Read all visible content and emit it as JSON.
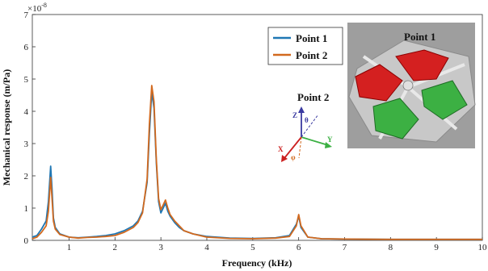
{
  "chart_data": {
    "type": "line",
    "xlabel": "Frequency (kHz)",
    "ylabel": "Mechanical response (m/Pa)",
    "y_multiplier": "×10",
    "y_exponent": "-8",
    "xlim": [
      0.2,
      10
    ],
    "ylim": [
      0,
      7
    ],
    "xticks": [
      "1",
      "2",
      "3",
      "4",
      "5",
      "6",
      "7",
      "8",
      "9",
      "10"
    ],
    "yticks": [
      "0",
      "1",
      "2",
      "3",
      "4",
      "5",
      "6",
      "7"
    ],
    "grid": false,
    "legend_position": "top-right",
    "series": [
      {
        "name": "Point 1",
        "color": "#1f77b4",
        "x": [
          0.2,
          0.3,
          0.4,
          0.5,
          0.55,
          0.6,
          0.63,
          0.66,
          0.7,
          0.8,
          1.0,
          1.2,
          1.4,
          1.6,
          1.8,
          2.0,
          2.2,
          2.4,
          2.5,
          2.6,
          2.7,
          2.75,
          2.8,
          2.85,
          2.9,
          2.95,
          3.0,
          3.05,
          3.1,
          3.15,
          3.2,
          3.3,
          3.4,
          3.5,
          3.7,
          4.0,
          4.5,
          5.0,
          5.5,
          5.8,
          5.95,
          6.0,
          6.05,
          6.2,
          6.5,
          7.0,
          8.0,
          9.0,
          10.0
        ],
        "y": [
          0.1,
          0.15,
          0.35,
          0.6,
          1.2,
          2.3,
          1.6,
          0.7,
          0.4,
          0.2,
          0.1,
          0.08,
          0.1,
          0.12,
          0.15,
          0.2,
          0.3,
          0.45,
          0.6,
          0.9,
          1.8,
          3.3,
          4.6,
          4.1,
          2.4,
          1.2,
          0.85,
          1.0,
          1.15,
          0.9,
          0.75,
          0.55,
          0.4,
          0.3,
          0.2,
          0.12,
          0.07,
          0.06,
          0.08,
          0.15,
          0.5,
          0.75,
          0.4,
          0.1,
          0.05,
          0.04,
          0.03,
          0.03,
          0.03
        ]
      },
      {
        "name": "Point 2",
        "color": "#d2691e",
        "x": [
          0.2,
          0.3,
          0.4,
          0.5,
          0.55,
          0.6,
          0.63,
          0.66,
          0.7,
          0.8,
          1.0,
          1.2,
          1.4,
          1.6,
          1.8,
          2.0,
          2.2,
          2.4,
          2.5,
          2.6,
          2.7,
          2.75,
          2.8,
          2.85,
          2.9,
          2.95,
          3.0,
          3.05,
          3.1,
          3.15,
          3.2,
          3.3,
          3.4,
          3.5,
          3.7,
          4.0,
          4.5,
          5.0,
          5.5,
          5.8,
          5.95,
          6.0,
          6.05,
          6.2,
          6.5,
          7.0,
          8.0,
          9.0,
          10.0
        ],
        "y": [
          0.05,
          0.1,
          0.25,
          0.45,
          0.9,
          1.95,
          1.3,
          0.6,
          0.35,
          0.18,
          0.1,
          0.07,
          0.09,
          0.1,
          0.12,
          0.15,
          0.25,
          0.4,
          0.55,
          0.85,
          1.9,
          3.6,
          4.8,
          4.3,
          2.5,
          1.3,
          0.95,
          1.1,
          1.25,
          1.0,
          0.8,
          0.6,
          0.45,
          0.3,
          0.2,
          0.1,
          0.06,
          0.05,
          0.07,
          0.12,
          0.45,
          0.8,
          0.45,
          0.1,
          0.05,
          0.04,
          0.03,
          0.03,
          0.03
        ]
      }
    ]
  },
  "inset": {
    "label_point1": "Point 1",
    "label_point2": "Point 2",
    "axis_z": "Z",
    "axis_x": "X",
    "axis_y": "Y",
    "angle_theta": "θ",
    "angle_phi": "φ",
    "colors": {
      "red_electrode": "#d42020",
      "green_electrode": "#3cb043",
      "plate": "#b8b8b8"
    }
  }
}
